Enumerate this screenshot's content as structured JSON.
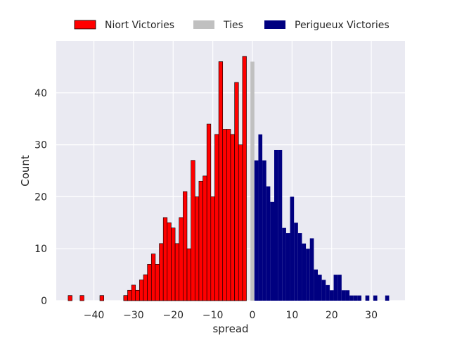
{
  "chart_data": {
    "type": "bar",
    "title": "",
    "xlabel": "spread",
    "ylabel": "Count",
    "xlim": [
      -49.5,
      38.5
    ],
    "ylim": [
      0,
      50
    ],
    "xticks": [
      -40,
      -30,
      -20,
      -10,
      0,
      10,
      20,
      30
    ],
    "yticks": [
      0,
      10,
      20,
      30,
      40
    ],
    "grid": true,
    "legend_position": "top-center",
    "bin_width": 1,
    "series": [
      {
        "name": "Niort Victories",
        "color": "#ff0000",
        "edge_color": "#000000",
        "x": [
          -46,
          -43,
          -38,
          -32,
          -31,
          -30,
          -29,
          -28,
          -27,
          -26,
          -25,
          -24,
          -23,
          -22,
          -21,
          -20,
          -19,
          -18,
          -17,
          -16,
          -15,
          -14,
          -13,
          -12,
          -11,
          -10,
          -9,
          -8,
          -7,
          -6,
          -5,
          -4,
          -3,
          -2,
          -1
        ],
        "values": [
          1,
          1,
          1,
          1,
          2,
          3,
          2,
          4,
          5,
          7,
          9,
          7,
          11,
          16,
          15,
          14,
          11,
          16,
          21,
          10,
          27,
          20,
          23,
          24,
          34,
          20,
          32,
          46,
          33,
          33,
          32,
          42,
          30,
          47,
          0
        ]
      },
      {
        "name": "Ties",
        "color": "#c0c0c0",
        "x": [
          0
        ],
        "values": [
          46
        ]
      },
      {
        "name": "Perigueux Victories",
        "color": "#000080",
        "x": [
          1,
          2,
          3,
          4,
          5,
          6,
          7,
          8,
          9,
          10,
          11,
          12,
          13,
          14,
          15,
          16,
          17,
          18,
          19,
          20,
          21,
          22,
          23,
          24,
          25,
          26,
          27,
          29,
          31,
          34
        ],
        "values": [
          27,
          32,
          27,
          22,
          19,
          29,
          29,
          14,
          13,
          20,
          15,
          13,
          11,
          10,
          12,
          6,
          5,
          4,
          3,
          2,
          5,
          5,
          2,
          2,
          1,
          1,
          1,
          1,
          1,
          1
        ]
      }
    ]
  }
}
